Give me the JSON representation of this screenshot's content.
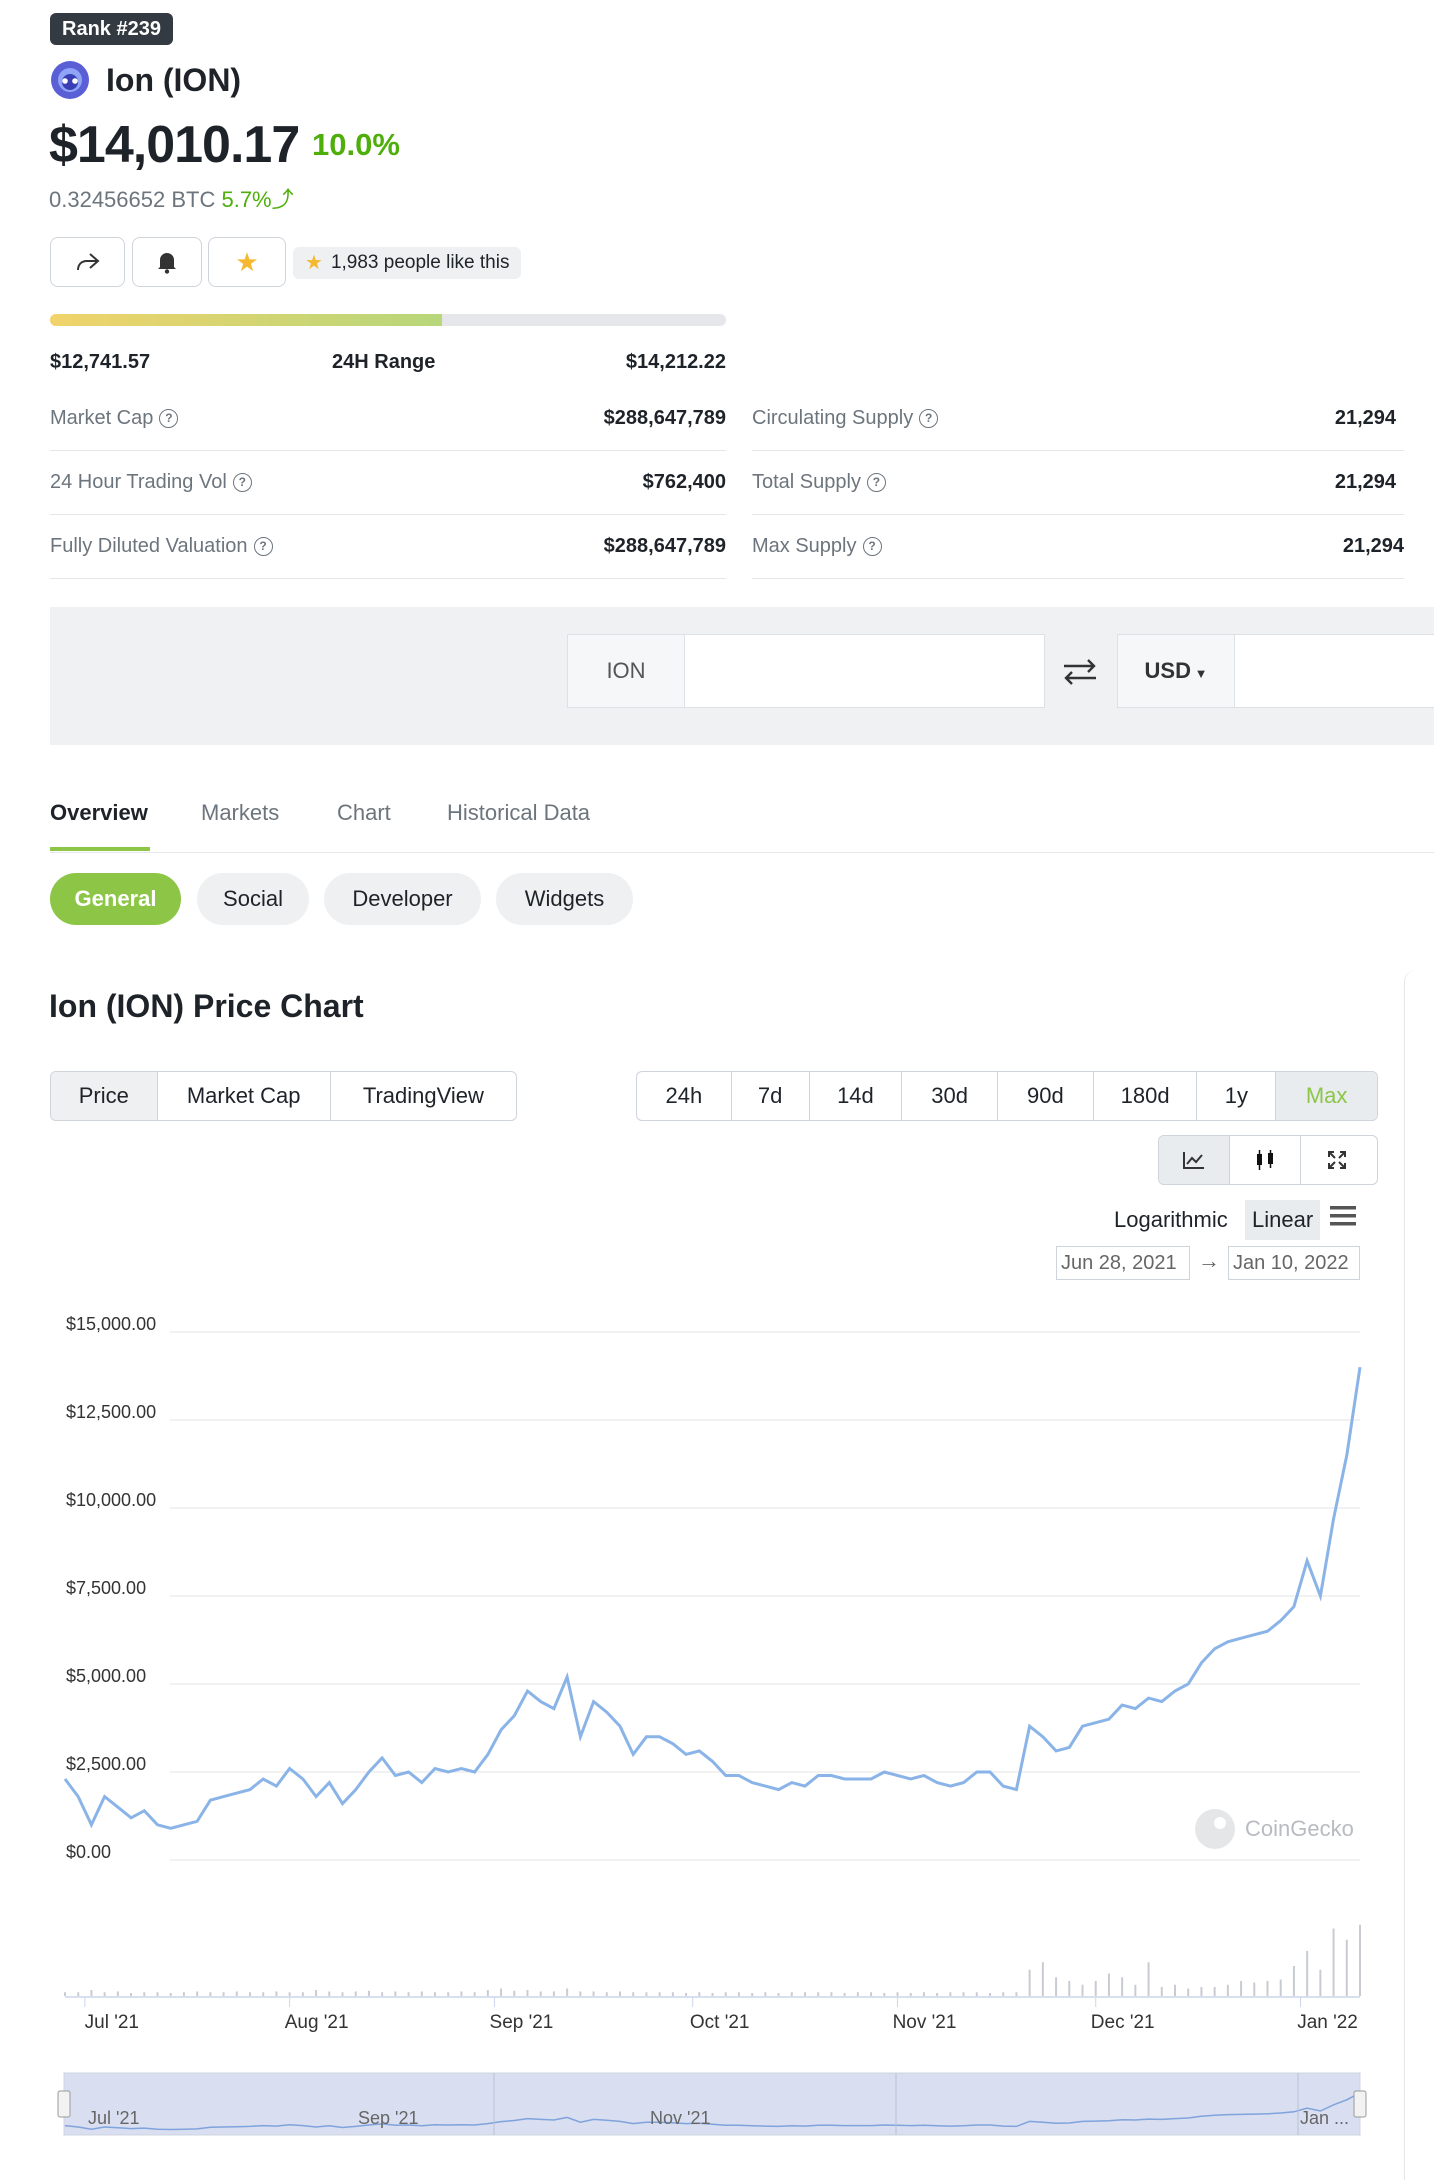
{
  "header": {
    "rank": "Rank #239",
    "coin_name": "Ion (ION)",
    "price": "$14,010.17",
    "change_pct": "10.0%",
    "btc_price": "0.32456652 BTC",
    "btc_change": "5.7%",
    "likes": "1,983 people like this"
  },
  "range": {
    "low": "$12,741.57",
    "label": "24H Range",
    "high": "$14,212.22",
    "position": 0.58
  },
  "stats_left": [
    {
      "label": "Market Cap",
      "value": "$288,647,789"
    },
    {
      "label": "24 Hour Trading Vol",
      "value": "$762,400"
    },
    {
      "label": "Fully Diluted Valuation",
      "value": "$288,647,789"
    }
  ],
  "stats_right": [
    {
      "label": "Circulating Supply",
      "value": "21,294"
    },
    {
      "label": "Total Supply",
      "value": "21,294"
    },
    {
      "label": "Max Supply",
      "value": "21,294"
    }
  ],
  "converter": {
    "from_currency": "ION",
    "to_currency": "USD"
  },
  "tabs": [
    "Overview",
    "Markets",
    "Chart",
    "Historical Data"
  ],
  "subtabs": [
    "General",
    "Social",
    "Developer",
    "Widgets"
  ],
  "chart_section": {
    "title": "Ion (ION) Price Chart",
    "type_buttons": [
      "Price",
      "Market Cap",
      "TradingView"
    ],
    "ranges": [
      "24h",
      "7d",
      "14d",
      "30d",
      "90d",
      "180d",
      "1y",
      "Max"
    ],
    "scale_log": "Logarithmic",
    "scale_linear": "Linear",
    "date_from": "Jun 28, 2021",
    "date_to": "Jan 10, 2022",
    "watermark": "CoinGecko"
  },
  "colors": {
    "green": "#4eaf0a",
    "accent": "#8dc647",
    "line": "#8ab4e8"
  },
  "chart_data": {
    "type": "line",
    "y_ticks": [
      "$15,000.00",
      "$12,500.00",
      "$10,000.00",
      "$7,500.00",
      "$5,000.00",
      "$2,500.00",
      "$0.00"
    ],
    "ylim": [
      0,
      15000
    ],
    "x_ticks": [
      "Jul '21",
      "Aug '21",
      "Sep '21",
      "Oct '21",
      "Nov '21",
      "Dec '21",
      "Jan '22"
    ],
    "navigator_ticks": [
      "Jul '21",
      "Sep '21",
      "Nov '21",
      "Jan ..."
    ],
    "x": [
      "2021-06-28",
      "2021-06-30",
      "2021-07-02",
      "2021-07-04",
      "2021-07-06",
      "2021-07-08",
      "2021-07-10",
      "2021-07-12",
      "2021-07-14",
      "2021-07-16",
      "2021-07-18",
      "2021-07-20",
      "2021-07-22",
      "2021-07-24",
      "2021-07-26",
      "2021-07-28",
      "2021-07-30",
      "2021-08-01",
      "2021-08-03",
      "2021-08-05",
      "2021-08-07",
      "2021-08-09",
      "2021-08-11",
      "2021-08-13",
      "2021-08-15",
      "2021-08-17",
      "2021-08-19",
      "2021-08-21",
      "2021-08-23",
      "2021-08-25",
      "2021-08-27",
      "2021-08-29",
      "2021-08-31",
      "2021-09-02",
      "2021-09-04",
      "2021-09-06",
      "2021-09-08",
      "2021-09-10",
      "2021-09-12",
      "2021-09-14",
      "2021-09-16",
      "2021-09-18",
      "2021-09-20",
      "2021-09-22",
      "2021-09-24",
      "2021-09-26",
      "2021-09-28",
      "2021-09-30",
      "2021-10-02",
      "2021-10-04",
      "2021-10-06",
      "2021-10-08",
      "2021-10-10",
      "2021-10-12",
      "2021-10-14",
      "2021-10-16",
      "2021-10-18",
      "2021-10-20",
      "2021-10-22",
      "2021-10-24",
      "2021-10-26",
      "2021-10-28",
      "2021-10-30",
      "2021-11-01",
      "2021-11-03",
      "2021-11-05",
      "2021-11-07",
      "2021-11-09",
      "2021-11-11",
      "2021-11-13",
      "2021-11-15",
      "2021-11-17",
      "2021-11-19",
      "2021-11-21",
      "2021-11-23",
      "2021-11-25",
      "2021-11-27",
      "2021-11-29",
      "2021-12-01",
      "2021-12-03",
      "2021-12-05",
      "2021-12-07",
      "2021-12-09",
      "2021-12-11",
      "2021-12-13",
      "2021-12-15",
      "2021-12-17",
      "2021-12-19",
      "2021-12-21",
      "2021-12-23",
      "2021-12-25",
      "2021-12-27",
      "2021-12-29",
      "2021-12-31",
      "2022-01-02",
      "2022-01-04",
      "2022-01-06",
      "2022-01-08",
      "2022-01-10"
    ],
    "y": [
      2300,
      1800,
      1000,
      1800,
      1500,
      1200,
      1400,
      1000,
      900,
      1000,
      1100,
      1700,
      1800,
      1900,
      2000,
      2300,
      2100,
      2600,
      2300,
      1800,
      2200,
      1600,
      2000,
      2500,
      2900,
      2400,
      2500,
      2200,
      2600,
      2500,
      2600,
      2500,
      3000,
      3700,
      4100,
      4800,
      4500,
      4300,
      5200,
      3500,
      4500,
      4200,
      3800,
      3000,
      3500,
      3500,
      3300,
      3000,
      3100,
      2800,
      2400,
      2400,
      2200,
      2100,
      2000,
      2200,
      2100,
      2400,
      2400,
      2300,
      2300,
      2300,
      2500,
      2400,
      2300,
      2400,
      2200,
      2100,
      2200,
      2500,
      2500,
      2100,
      2000,
      3800,
      3500,
      3100,
      3200,
      3800,
      3900,
      4000,
      4400,
      4300,
      4600,
      4500,
      4800,
      5000,
      5600,
      6000,
      6200,
      6300,
      6400,
      6500,
      6800,
      7200,
      8500,
      7500,
      9700,
      11500,
      14000
    ],
    "volume_spikes": [
      0.05,
      0.05,
      0.08,
      0.05,
      0.06,
      0.04,
      0.05,
      0.05,
      0.04,
      0.05,
      0.06,
      0.05,
      0.05,
      0.06,
      0.05,
      0.05,
      0.06,
      0.05,
      0.05,
      0.08,
      0.06,
      0.05,
      0.06,
      0.07,
      0.05,
      0.06,
      0.05,
      0.06,
      0.05,
      0.05,
      0.06,
      0.05,
      0.08,
      0.1,
      0.07,
      0.08,
      0.06,
      0.06,
      0.1,
      0.06,
      0.06,
      0.05,
      0.06,
      0.05,
      0.05,
      0.05,
      0.05,
      0.04,
      0.05,
      0.04,
      0.05,
      0.05,
      0.04,
      0.05,
      0.04,
      0.05,
      0.05,
      0.05,
      0.05,
      0.04,
      0.05,
      0.05,
      0.04,
      0.05,
      0.04,
      0.05,
      0.04,
      0.05,
      0.05,
      0.05,
      0.04,
      0.05,
      0.05,
      0.35,
      0.45,
      0.25,
      0.2,
      0.15,
      0.2,
      0.3,
      0.25,
      0.15,
      0.45,
      0.12,
      0.15,
      0.1,
      0.12,
      0.12,
      0.15,
      0.2,
      0.18,
      0.2,
      0.22,
      0.4,
      0.6,
      0.35,
      0.9,
      0.75,
      0.95
    ]
  }
}
